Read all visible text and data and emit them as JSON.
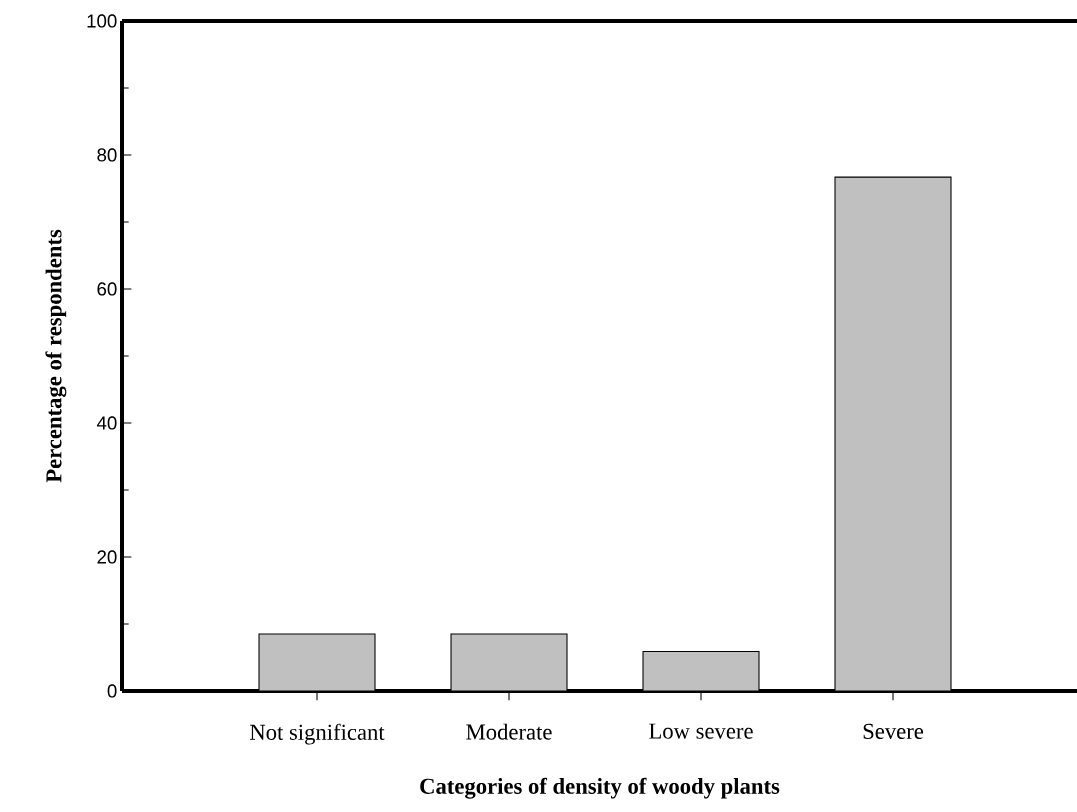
{
  "chart_data": {
    "type": "bar",
    "xlabel": "Categories of density of woody plants",
    "ylabel": "Percentage of respondents",
    "categories": [
      "Not significant",
      "Moderate",
      "Low severe",
      "Severe"
    ],
    "values": [
      8.5,
      8.5,
      5.9,
      76.7
    ],
    "color": "#c0c0c0",
    "ylim": [
      0,
      100
    ],
    "yticks": [
      0,
      20,
      40,
      60,
      80,
      100
    ]
  }
}
